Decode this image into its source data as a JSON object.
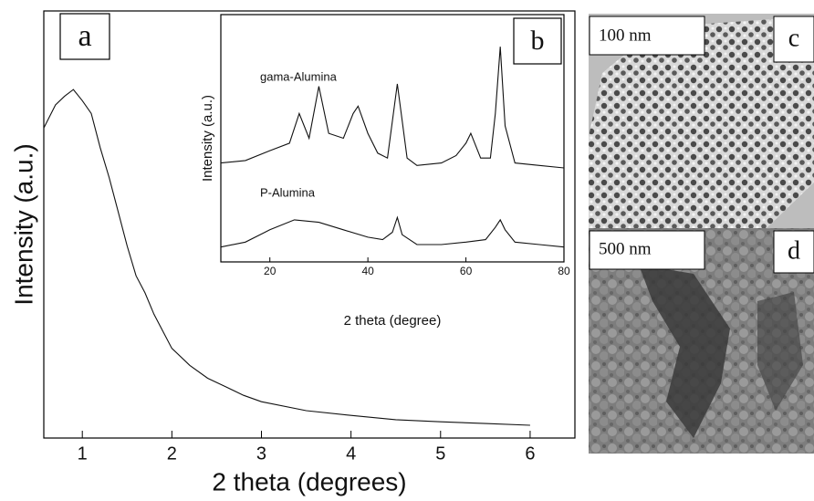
{
  "chart_data": [
    {
      "type": "line",
      "panel_label": "a",
      "xlabel": "2 theta (degrees)",
      "ylabel": "Intensity (a.u.)",
      "xlim": [
        0.57,
        6.5
      ],
      "ylim": [
        0,
        100
      ],
      "xticks": [
        1,
        2,
        3,
        4,
        5,
        6
      ],
      "series": [
        {
          "color": "#111111",
          "x": [
            0.57,
            0.7,
            0.8,
            0.9,
            1.0,
            1.1,
            1.2,
            1.3,
            1.4,
            1.5,
            1.6,
            1.7,
            1.8,
            1.9,
            2.0,
            2.2,
            2.4,
            2.6,
            2.8,
            3.0,
            3.5,
            4.0,
            4.5,
            5.0,
            5.5,
            6.0
          ],
          "values": [
            72.6,
            78,
            80,
            81.6,
            79,
            76,
            68,
            61,
            53,
            45,
            38,
            34,
            29,
            25,
            21,
            17,
            14,
            12,
            10,
            8.5,
            6.4,
            5.3,
            4.3,
            3.8,
            3.4,
            3
          ]
        }
      ]
    },
    {
      "type": "line",
      "panel_label": "b",
      "xlabel": "2 theta (degree)",
      "ylabel": "Intensity (a.u.)",
      "xlim": [
        10,
        80
      ],
      "ylim": [
        0,
        100
      ],
      "xticks": [
        20,
        40,
        60,
        80
      ],
      "series": [
        {
          "name": "gama-Alumina",
          "color": "#111111",
          "x": [
            10,
            15,
            20,
            24,
            26,
            28,
            30,
            32,
            35,
            37,
            38,
            40,
            42,
            44,
            46,
            48,
            50,
            55,
            58,
            60,
            61,
            63,
            65,
            66,
            67,
            68,
            70,
            75,
            80
          ],
          "values": [
            40,
            41,
            45,
            48,
            60,
            50,
            71,
            52,
            50,
            60,
            63,
            52,
            44,
            42,
            72,
            42,
            39,
            40,
            43,
            48,
            52,
            42,
            42,
            60,
            87,
            55,
            40,
            39,
            38
          ]
        },
        {
          "name": "P-Alumina",
          "color": "#111111",
          "x": [
            10,
            15,
            20,
            25,
            30,
            35,
            40,
            43,
            45,
            46,
            47,
            50,
            55,
            60,
            64,
            66,
            67,
            68,
            70,
            75,
            80
          ],
          "values": [
            6,
            8,
            13,
            17,
            16,
            13,
            10,
            9,
            12,
            18,
            11,
            7,
            7,
            8,
            9,
            14,
            17,
            13,
            8,
            7,
            6
          ]
        }
      ]
    }
  ],
  "images": [
    {
      "scale": "100 nm",
      "label": "c"
    },
    {
      "scale": "500 nm",
      "label": "d"
    }
  ]
}
